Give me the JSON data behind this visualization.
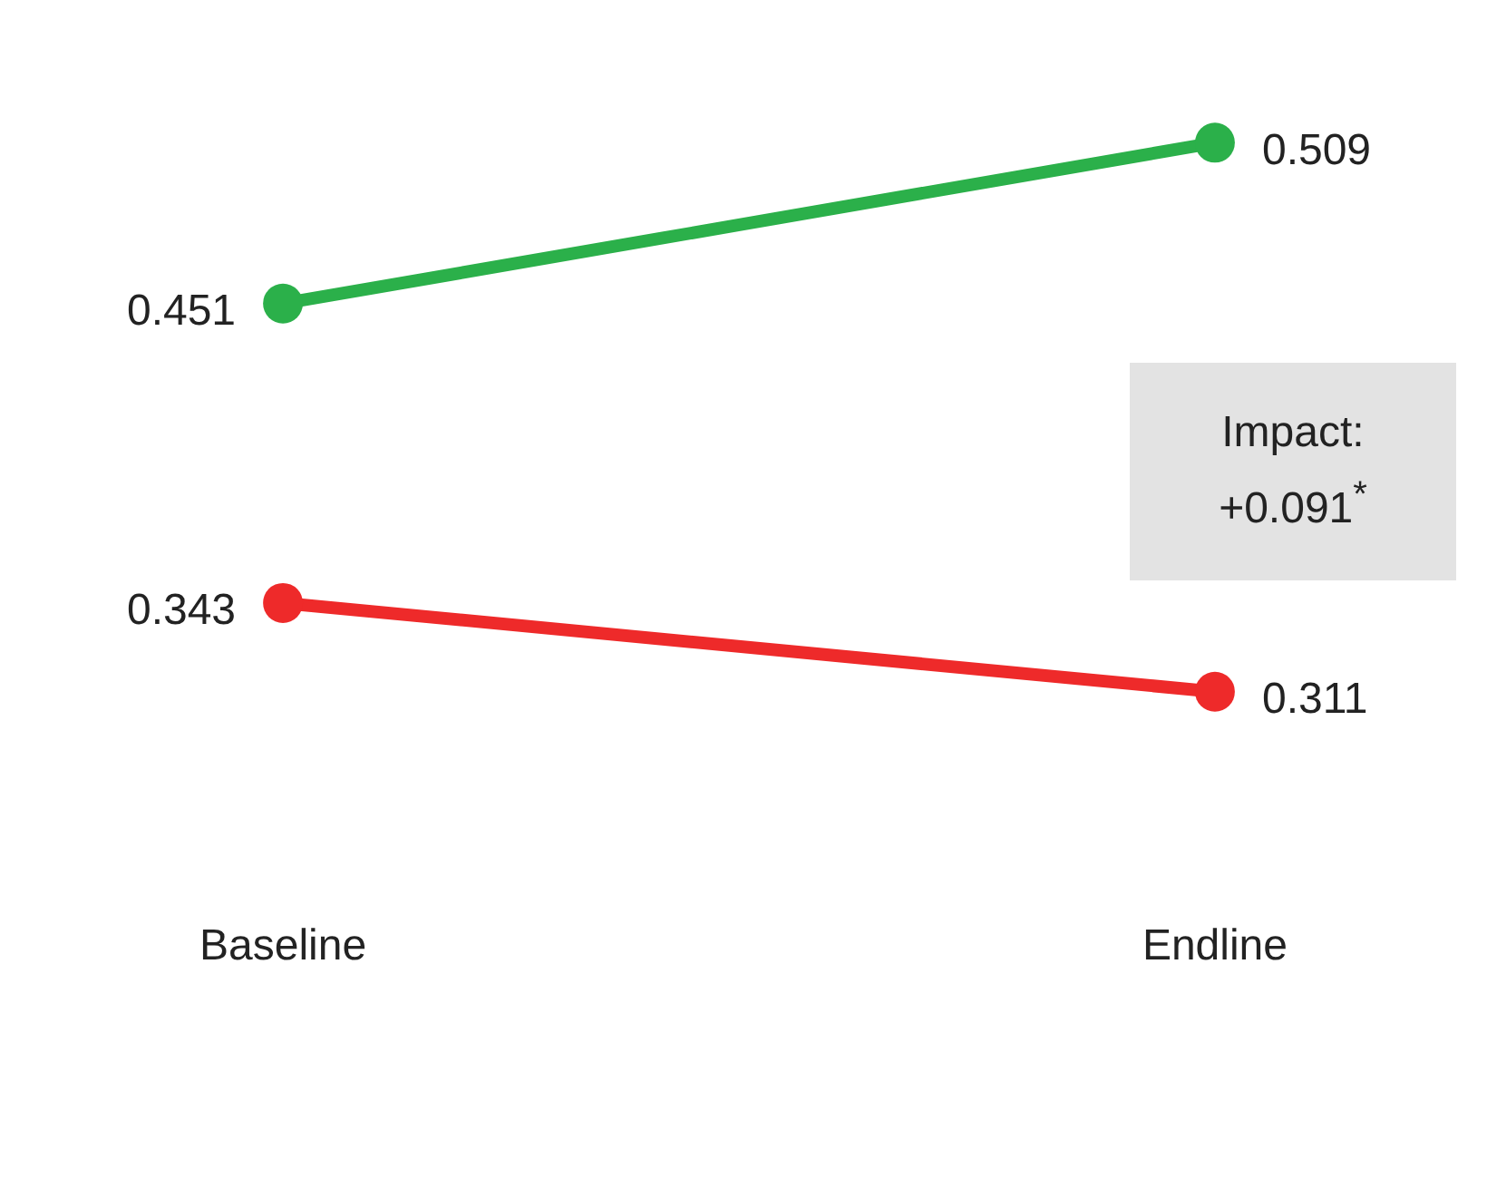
{
  "chart_data": {
    "type": "line",
    "categories": [
      "Baseline",
      "Endline"
    ],
    "series": [
      {
        "color": "#2bb04a",
        "values": [
          0.451,
          0.509
        ]
      },
      {
        "color": "#ee2a2a",
        "values": [
          0.343,
          0.311
        ]
      }
    ],
    "tick_labels": "x",
    "grid": false,
    "marker": "circle",
    "line_style": "solid",
    "data_labels": true,
    "annotations": [
      "Impact: +0.091$^{*}$"
    ]
  }
}
